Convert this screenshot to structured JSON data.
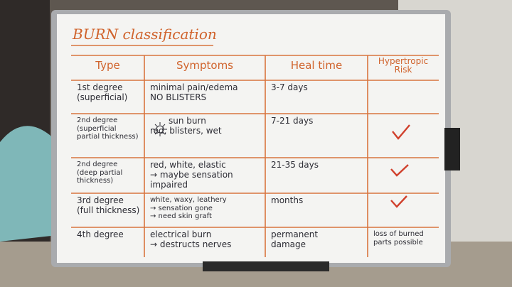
{
  "title": "BURN classification",
  "table": {
    "header": [
      "Type",
      "Symptoms",
      "Heal time",
      "Hypertropic Risk"
    ],
    "rows": [
      [
        [
          "1st degree",
          "(superficial)"
        ],
        [
          "minimal pain/edema",
          "NO BLISTERS"
        ],
        [
          "3-7 days"
        ]
      ],
      [
        [
          "2nd degree",
          "(superficial",
          "partial thickness)"
        ],
        [
          "sun burn",
          "red, blisters, wet"
        ],
        [
          "7-21 days"
        ]
      ],
      [
        [
          "2nd degree",
          "(deep partial",
          "thickness)"
        ],
        [
          "red, white, elastic",
          "→ maybe sensation impaired"
        ],
        [
          "21-35 days"
        ]
      ],
      [
        [
          "3rd degree",
          "(full thickness)"
        ],
        [
          "white, waxy, leathery",
          "→ sensation gone",
          "→ need skin graft"
        ],
        [
          "months"
        ]
      ],
      [
        [
          "4th degree"
        ],
        [
          "electrical burn",
          "→ destructs nerves"
        ],
        [
          "permanent",
          "damage"
        ],
        [
          "loss of burned",
          "parts possible"
        ]
      ]
    ]
  }
}
